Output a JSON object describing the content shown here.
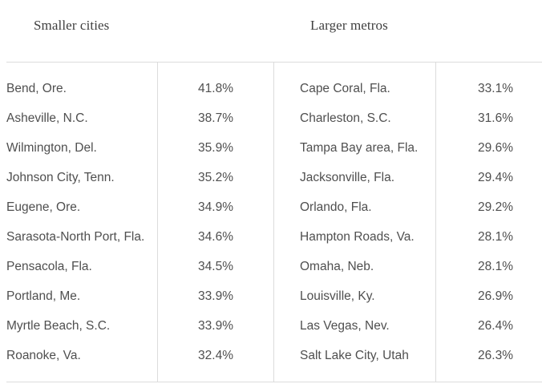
{
  "headers": {
    "left": "Smaller cities",
    "right": "Larger metros"
  },
  "smaller_cities": [
    {
      "name": "Bend, Ore.",
      "value": "41.8%"
    },
    {
      "name": "Asheville, N.C.",
      "value": "38.7%"
    },
    {
      "name": "Wilmington, Del.",
      "value": "35.9%"
    },
    {
      "name": "Johnson City, Tenn.",
      "value": "35.2%"
    },
    {
      "name": "Eugene, Ore.",
      "value": "34.9%"
    },
    {
      "name": "Sarasota-North Port, Fla.",
      "value": "34.6%"
    },
    {
      "name": "Pensacola, Fla.",
      "value": "34.5%"
    },
    {
      "name": "Portland, Me.",
      "value": "33.9%"
    },
    {
      "name": "Myrtle Beach, S.C.",
      "value": "33.9%"
    },
    {
      "name": "Roanoke, Va.",
      "value": "32.4%"
    }
  ],
  "larger_metros": [
    {
      "name": "Cape Coral, Fla.",
      "value": "33.1%"
    },
    {
      "name": "Charleston, S.C.",
      "value": "31.6%"
    },
    {
      "name": "Tampa Bay area, Fla.",
      "value": "29.6%"
    },
    {
      "name": "Jacksonville, Fla.",
      "value": "29.4%"
    },
    {
      "name": "Orlando, Fla.",
      "value": "29.2%"
    },
    {
      "name": "Hampton Roads, Va.",
      "value": "28.1%"
    },
    {
      "name": "Omaha, Neb.",
      "value": "28.1%"
    },
    {
      "name": "Louisville, Ky.",
      "value": "26.9%"
    },
    {
      "name": "Las Vegas, Nev.",
      "value": "26.4%"
    },
    {
      "name": "Salt Lake City, Utah",
      "value": "26.3%"
    }
  ]
}
